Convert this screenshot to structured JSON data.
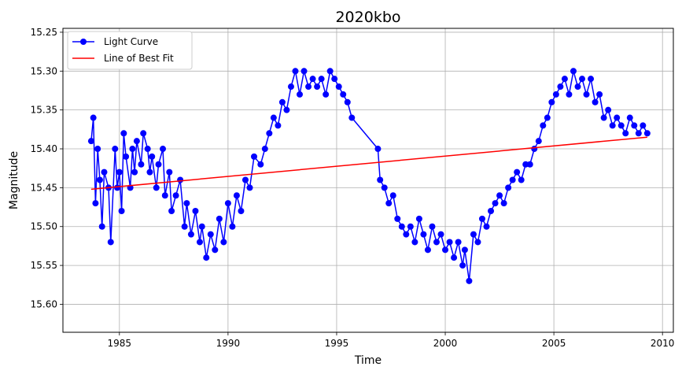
{
  "chart_data": {
    "type": "line",
    "title": "2020kbo",
    "xlabel": "Time",
    "ylabel": "Magnitude",
    "xlim": [
      1982.4,
      2010.5
    ],
    "ylim": [
      15.636,
      15.245
    ],
    "y_inverted": true,
    "grid": true,
    "legend_position": "top-left",
    "x_ticks": [
      1985,
      1990,
      1995,
      2000,
      2005,
      2010
    ],
    "x_tick_labels": [
      "1985",
      "1990",
      "1995",
      "2000",
      "2005",
      "2010"
    ],
    "y_ticks": [
      15.25,
      15.3,
      15.35,
      15.4,
      15.45,
      15.5,
      15.55,
      15.6
    ],
    "y_tick_labels": [
      "15.25",
      "15.30",
      "15.35",
      "15.40",
      "15.45",
      "15.50",
      "15.55",
      "15.60"
    ],
    "series": [
      {
        "name": "Light Curve",
        "color": "#0000ff",
        "marker": "circle",
        "x": [
          1983.7,
          1983.8,
          1983.9,
          1984.0,
          1984.1,
          1984.2,
          1984.3,
          1984.5,
          1984.6,
          1984.8,
          1984.9,
          1985.0,
          1985.1,
          1985.2,
          1985.3,
          1985.5,
          1985.6,
          1985.7,
          1985.8,
          1986.0,
          1986.1,
          1986.3,
          1986.4,
          1986.5,
          1986.7,
          1986.8,
          1987.0,
          1987.1,
          1987.3,
          1987.4,
          1987.6,
          1987.8,
          1988.0,
          1988.1,
          1988.3,
          1988.5,
          1988.7,
          1988.8,
          1989.0,
          1989.2,
          1989.4,
          1989.6,
          1989.8,
          1990.0,
          1990.2,
          1990.4,
          1990.6,
          1990.8,
          1991.0,
          1991.2,
          1991.5,
          1991.7,
          1991.9,
          1992.1,
          1992.3,
          1992.5,
          1992.7,
          1992.9,
          1993.1,
          1993.3,
          1993.5,
          1993.7,
          1993.9,
          1994.1,
          1994.3,
          1994.5,
          1994.7,
          1994.9,
          1995.1,
          1995.3,
          1995.5,
          1995.7,
          1996.9,
          1997.0,
          1997.2,
          1997.4,
          1997.6,
          1997.8,
          1998.0,
          1998.2,
          1998.4,
          1998.6,
          1998.8,
          1999.0,
          1999.2,
          1999.4,
          1999.6,
          1999.8,
          2000.0,
          2000.2,
          2000.4,
          2000.6,
          2000.8,
          2000.9,
          2001.1,
          2001.3,
          2001.5,
          2001.7,
          2001.9,
          2002.1,
          2002.3,
          2002.5,
          2002.7,
          2002.9,
          2003.1,
          2003.3,
          2003.5,
          2003.7,
          2003.9,
          2004.1,
          2004.3,
          2004.5,
          2004.7,
          2004.9,
          2005.1,
          2005.3,
          2005.5,
          2005.7,
          2005.9,
          2006.1,
          2006.3,
          2006.5,
          2006.7,
          2006.9,
          2007.1,
          2007.3,
          2007.5,
          2007.7,
          2007.9,
          2008.1,
          2008.3,
          2008.5,
          2008.7,
          2008.9,
          2009.1,
          2009.3
        ],
        "y": [
          15.39,
          15.36,
          15.47,
          15.4,
          15.44,
          15.5,
          15.43,
          15.45,
          15.52,
          15.4,
          15.45,
          15.43,
          15.48,
          15.38,
          15.41,
          15.45,
          15.4,
          15.43,
          15.39,
          15.42,
          15.38,
          15.4,
          15.43,
          15.41,
          15.45,
          15.42,
          15.4,
          15.46,
          15.43,
          15.48,
          15.46,
          15.44,
          15.5,
          15.47,
          15.51,
          15.48,
          15.52,
          15.5,
          15.54,
          15.51,
          15.53,
          15.49,
          15.52,
          15.47,
          15.5,
          15.46,
          15.48,
          15.44,
          15.45,
          15.41,
          15.42,
          15.4,
          15.38,
          15.36,
          15.37,
          15.34,
          15.35,
          15.32,
          15.3,
          15.33,
          15.3,
          15.32,
          15.31,
          15.32,
          15.31,
          15.33,
          15.3,
          15.31,
          15.32,
          15.33,
          15.34,
          15.36,
          15.4,
          15.44,
          15.45,
          15.47,
          15.46,
          15.49,
          15.5,
          15.51,
          15.5,
          15.52,
          15.49,
          15.51,
          15.53,
          15.5,
          15.52,
          15.51,
          15.53,
          15.52,
          15.54,
          15.52,
          15.55,
          15.53,
          15.57,
          15.51,
          15.52,
          15.49,
          15.5,
          15.48,
          15.47,
          15.46,
          15.47,
          15.45,
          15.44,
          15.43,
          15.44,
          15.42,
          15.42,
          15.4,
          15.39,
          15.37,
          15.36,
          15.34,
          15.33,
          15.32,
          15.31,
          15.33,
          15.3,
          15.32,
          15.31,
          15.33,
          15.31,
          15.34,
          15.33,
          15.36,
          15.35,
          15.37,
          15.36,
          15.37,
          15.38,
          15.36,
          15.37,
          15.38,
          15.37,
          15.38
        ]
      },
      {
        "name": "Line of Best Fit",
        "color": "#ff0000",
        "x": [
          1983.7,
          2009.3
        ],
        "y": [
          15.452,
          15.385
        ]
      }
    ]
  }
}
